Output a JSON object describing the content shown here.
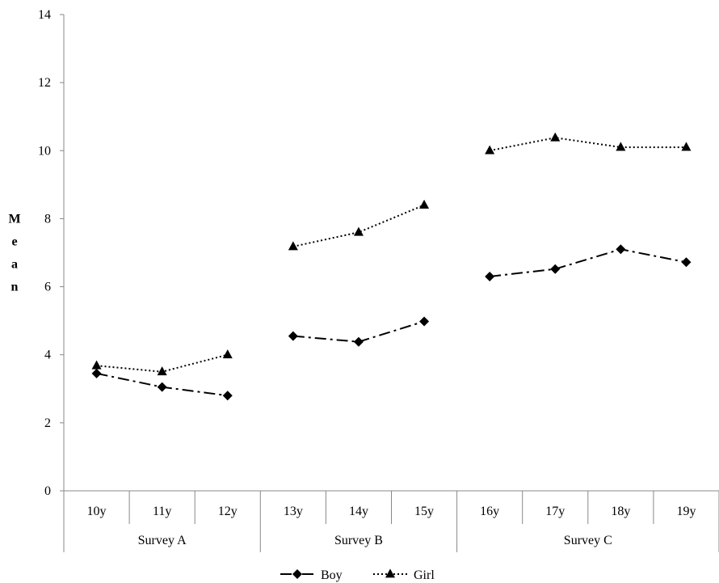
{
  "chart_data": {
    "type": "line",
    "title": "",
    "xlabel": "",
    "ylabel": "Mean",
    "ylim": [
      0,
      14
    ],
    "y_ticks": [
      0,
      2,
      4,
      6,
      8,
      10,
      12,
      14
    ],
    "grid": false,
    "legend_position": "bottom",
    "categories": [
      "10y",
      "11y",
      "12y",
      "13y",
      "14y",
      "15y",
      "16y",
      "17y",
      "18y",
      "19y"
    ],
    "groups": [
      {
        "label": "Survey A",
        "categories": [
          "10y",
          "11y",
          "12y"
        ]
      },
      {
        "label": "Survey B",
        "categories": [
          "13y",
          "14y",
          "15y"
        ]
      },
      {
        "label": "Survey C",
        "categories": [
          "16y",
          "17y",
          "18y",
          "19y"
        ]
      }
    ],
    "series": [
      {
        "name": "Boy",
        "marker": "diamond",
        "line_style": "dash-dot",
        "color": "#000000",
        "segments": [
          {
            "group": "Survey A",
            "values": [
              3.45,
              3.05,
              2.8
            ]
          },
          {
            "group": "Survey B",
            "values": [
              4.55,
              4.38,
              4.98
            ]
          },
          {
            "group": "Survey C",
            "values": [
              6.3,
              6.52,
              7.1,
              6.72
            ]
          }
        ]
      },
      {
        "name": "Girl",
        "marker": "triangle",
        "line_style": "dotted",
        "color": "#000000",
        "segments": [
          {
            "group": "Survey A",
            "values": [
              3.68,
              3.5,
              4.0
            ]
          },
          {
            "group": "Survey B",
            "values": [
              7.18,
              7.6,
              8.4
            ]
          },
          {
            "group": "Survey C",
            "values": [
              10.0,
              10.38,
              10.1,
              10.1
            ]
          }
        ]
      }
    ]
  }
}
